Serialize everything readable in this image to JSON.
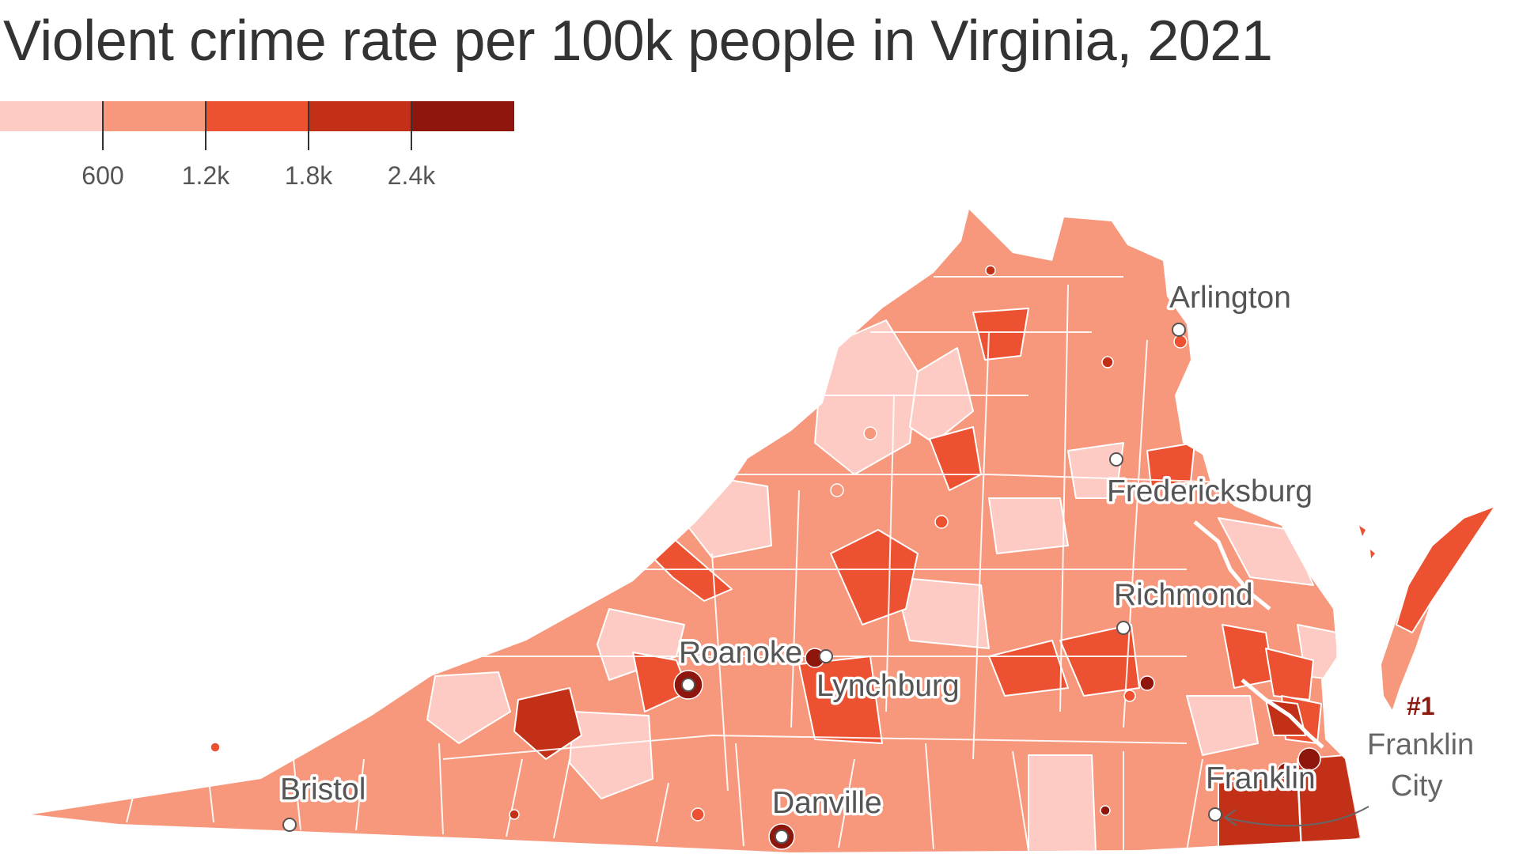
{
  "title": "Violent crime rate per 100k people in Virginia, 2021",
  "legend": {
    "bins": [
      {
        "from": 0,
        "to": 600,
        "color": "#fdcbc3"
      },
      {
        "from": 600,
        "to": 1200,
        "color": "#f7977c"
      },
      {
        "from": 1200,
        "to": 1800,
        "color": "#ec5232"
      },
      {
        "from": 1800,
        "to": 2400,
        "color": "#c23018"
      },
      {
        "from": 2400,
        "to": 3000,
        "color": "#8e160d"
      }
    ],
    "labels": [
      "600",
      "1.2k",
      "1.8k",
      "2.4k"
    ]
  },
  "cities": {
    "arlington": "Arlington",
    "fredericksburg": "Fredericksburg",
    "richmond": "Richmond",
    "roanoke": "Roanoke",
    "lynchburg": "Lynchburg",
    "bristol": "Bristol",
    "danville": "Danville",
    "franklin": "Franklin"
  },
  "callout": {
    "rank": "#1",
    "line1": "Franklin",
    "line2": "City"
  },
  "colors": {
    "border": "#ffffff",
    "marker_fill": "#ffffff",
    "marker_stroke": "#555555",
    "arrow": "#666666"
  }
}
